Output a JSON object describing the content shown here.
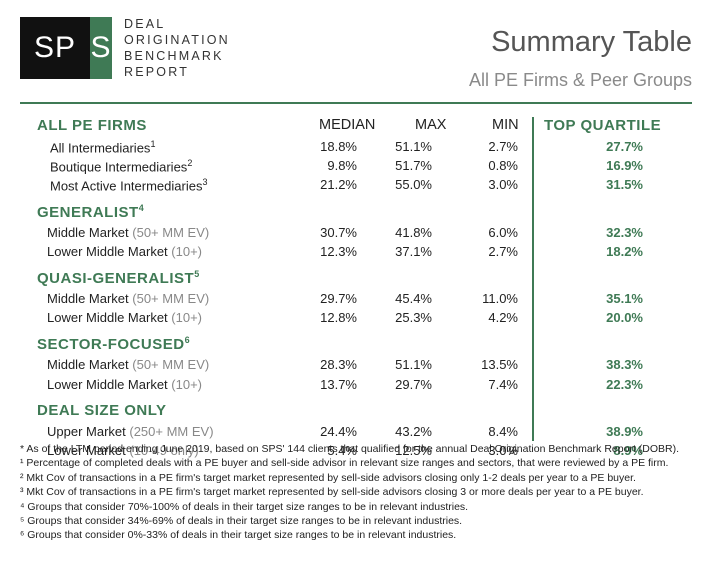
{
  "logo": {
    "mark_left": "SP",
    "mark_right": "S",
    "lines": [
      "DEAL",
      "ORIGINATION",
      "BENCHMARK",
      "REPORT"
    ]
  },
  "title": "Summary Table",
  "subtitle": "All PE Firms & Peer Groups",
  "columns": {
    "median": "MEDIAN",
    "max": "MAX",
    "min": "MIN",
    "top_quartile": "TOP QUARTILE"
  },
  "sections": [
    {
      "name": "ALL PE FIRMS",
      "sup": "",
      "rows": [
        {
          "label": "All Intermediaries",
          "sup": "1",
          "range": "",
          "median": "18.8%",
          "max": "51.1%",
          "min": "2.7%",
          "top": "27.7%"
        },
        {
          "label": "Boutique Intermediaries",
          "sup": "2",
          "range": "",
          "median": "9.8%",
          "max": "51.7%",
          "min": "0.8%",
          "top": "16.9%"
        },
        {
          "label": "Most Active Intermediaries",
          "sup": "3",
          "range": "",
          "median": "21.2%",
          "max": "55.0%",
          "min": "3.0%",
          "top": "31.5%"
        }
      ]
    },
    {
      "name": "GENERALIST",
      "sup": "4",
      "rows": [
        {
          "label": "Middle Market",
          "sup": "",
          "range": "(50+ MM EV)",
          "median": "30.7%",
          "max": "41.8%",
          "min": "6.0%",
          "top": "32.3%"
        },
        {
          "label": "Lower Middle Market",
          "sup": "",
          "range": "(10+)",
          "median": "12.3%",
          "max": "37.1%",
          "min": "2.7%",
          "top": "18.2%"
        }
      ]
    },
    {
      "name": "QUASI-GENERALIST",
      "sup": "5",
      "rows": [
        {
          "label": "Middle Market",
          "sup": "",
          "range": "(50+ MM EV)",
          "median": "29.7%",
          "max": "45.4%",
          "min": "11.0%",
          "top": "35.1%"
        },
        {
          "label": "Lower Middle Market",
          "sup": "",
          "range": "(10+)",
          "median": "12.8%",
          "max": "25.3%",
          "min": "4.2%",
          "top": "20.0%"
        }
      ]
    },
    {
      "name": "SECTOR-FOCUSED",
      "sup": "6",
      "rows": [
        {
          "label": "Middle Market",
          "sup": "",
          "range": "(50+ MM EV)",
          "median": "28.3%",
          "max": "51.1%",
          "min": "13.5%",
          "top": "38.3%"
        },
        {
          "label": "Lower Middle Market",
          "sup": "",
          "range": "(10+)",
          "median": "13.7%",
          "max": "29.7%",
          "min": "7.4%",
          "top": "22.3%"
        }
      ]
    },
    {
      "name": "DEAL SIZE ONLY",
      "sup": "",
      "rows": [
        {
          "label": "Upper Market",
          "sup": "",
          "range": "(250+ MM EV)",
          "median": "24.4%",
          "max": "43.2%",
          "min": "8.4%",
          "top": "38.9%"
        },
        {
          "label": "Lower Market",
          "sup": "",
          "range": "(10-49 only)",
          "median": "5.4%",
          "max": "12.5%",
          "min": "3.0%",
          "top": "8.9%"
        }
      ]
    }
  ],
  "footnotes": [
    "* As of the LTM period ending June 2019, based on SPS' 144 clients that qualified for the annual Deal Origination Benchmark Report (DOBR).",
    "¹ Percentage of completed deals with a PE buyer and sell-side advisor in relevant size ranges and sectors, that were reviewed by a PE firm.",
    "² Mkt Cov of transactions in a PE firm's target market represented by sell-side advisors closing only 1-2 deals per year to a PE buyer.",
    "³ Mkt Cov of transactions in a PE firm's target market represented by sell-side advisors closing 3 or more deals per year to a PE buyer.",
    "⁴ Groups that consider 70%-100% of deals in their target size ranges to be in relevant industries.",
    "⁵ Groups that consider 34%-69% of deals in their target size ranges to be in relevant industries.",
    "⁶ Groups that consider 0%-33% of deals in their target size ranges to be in relevant industries."
  ]
}
